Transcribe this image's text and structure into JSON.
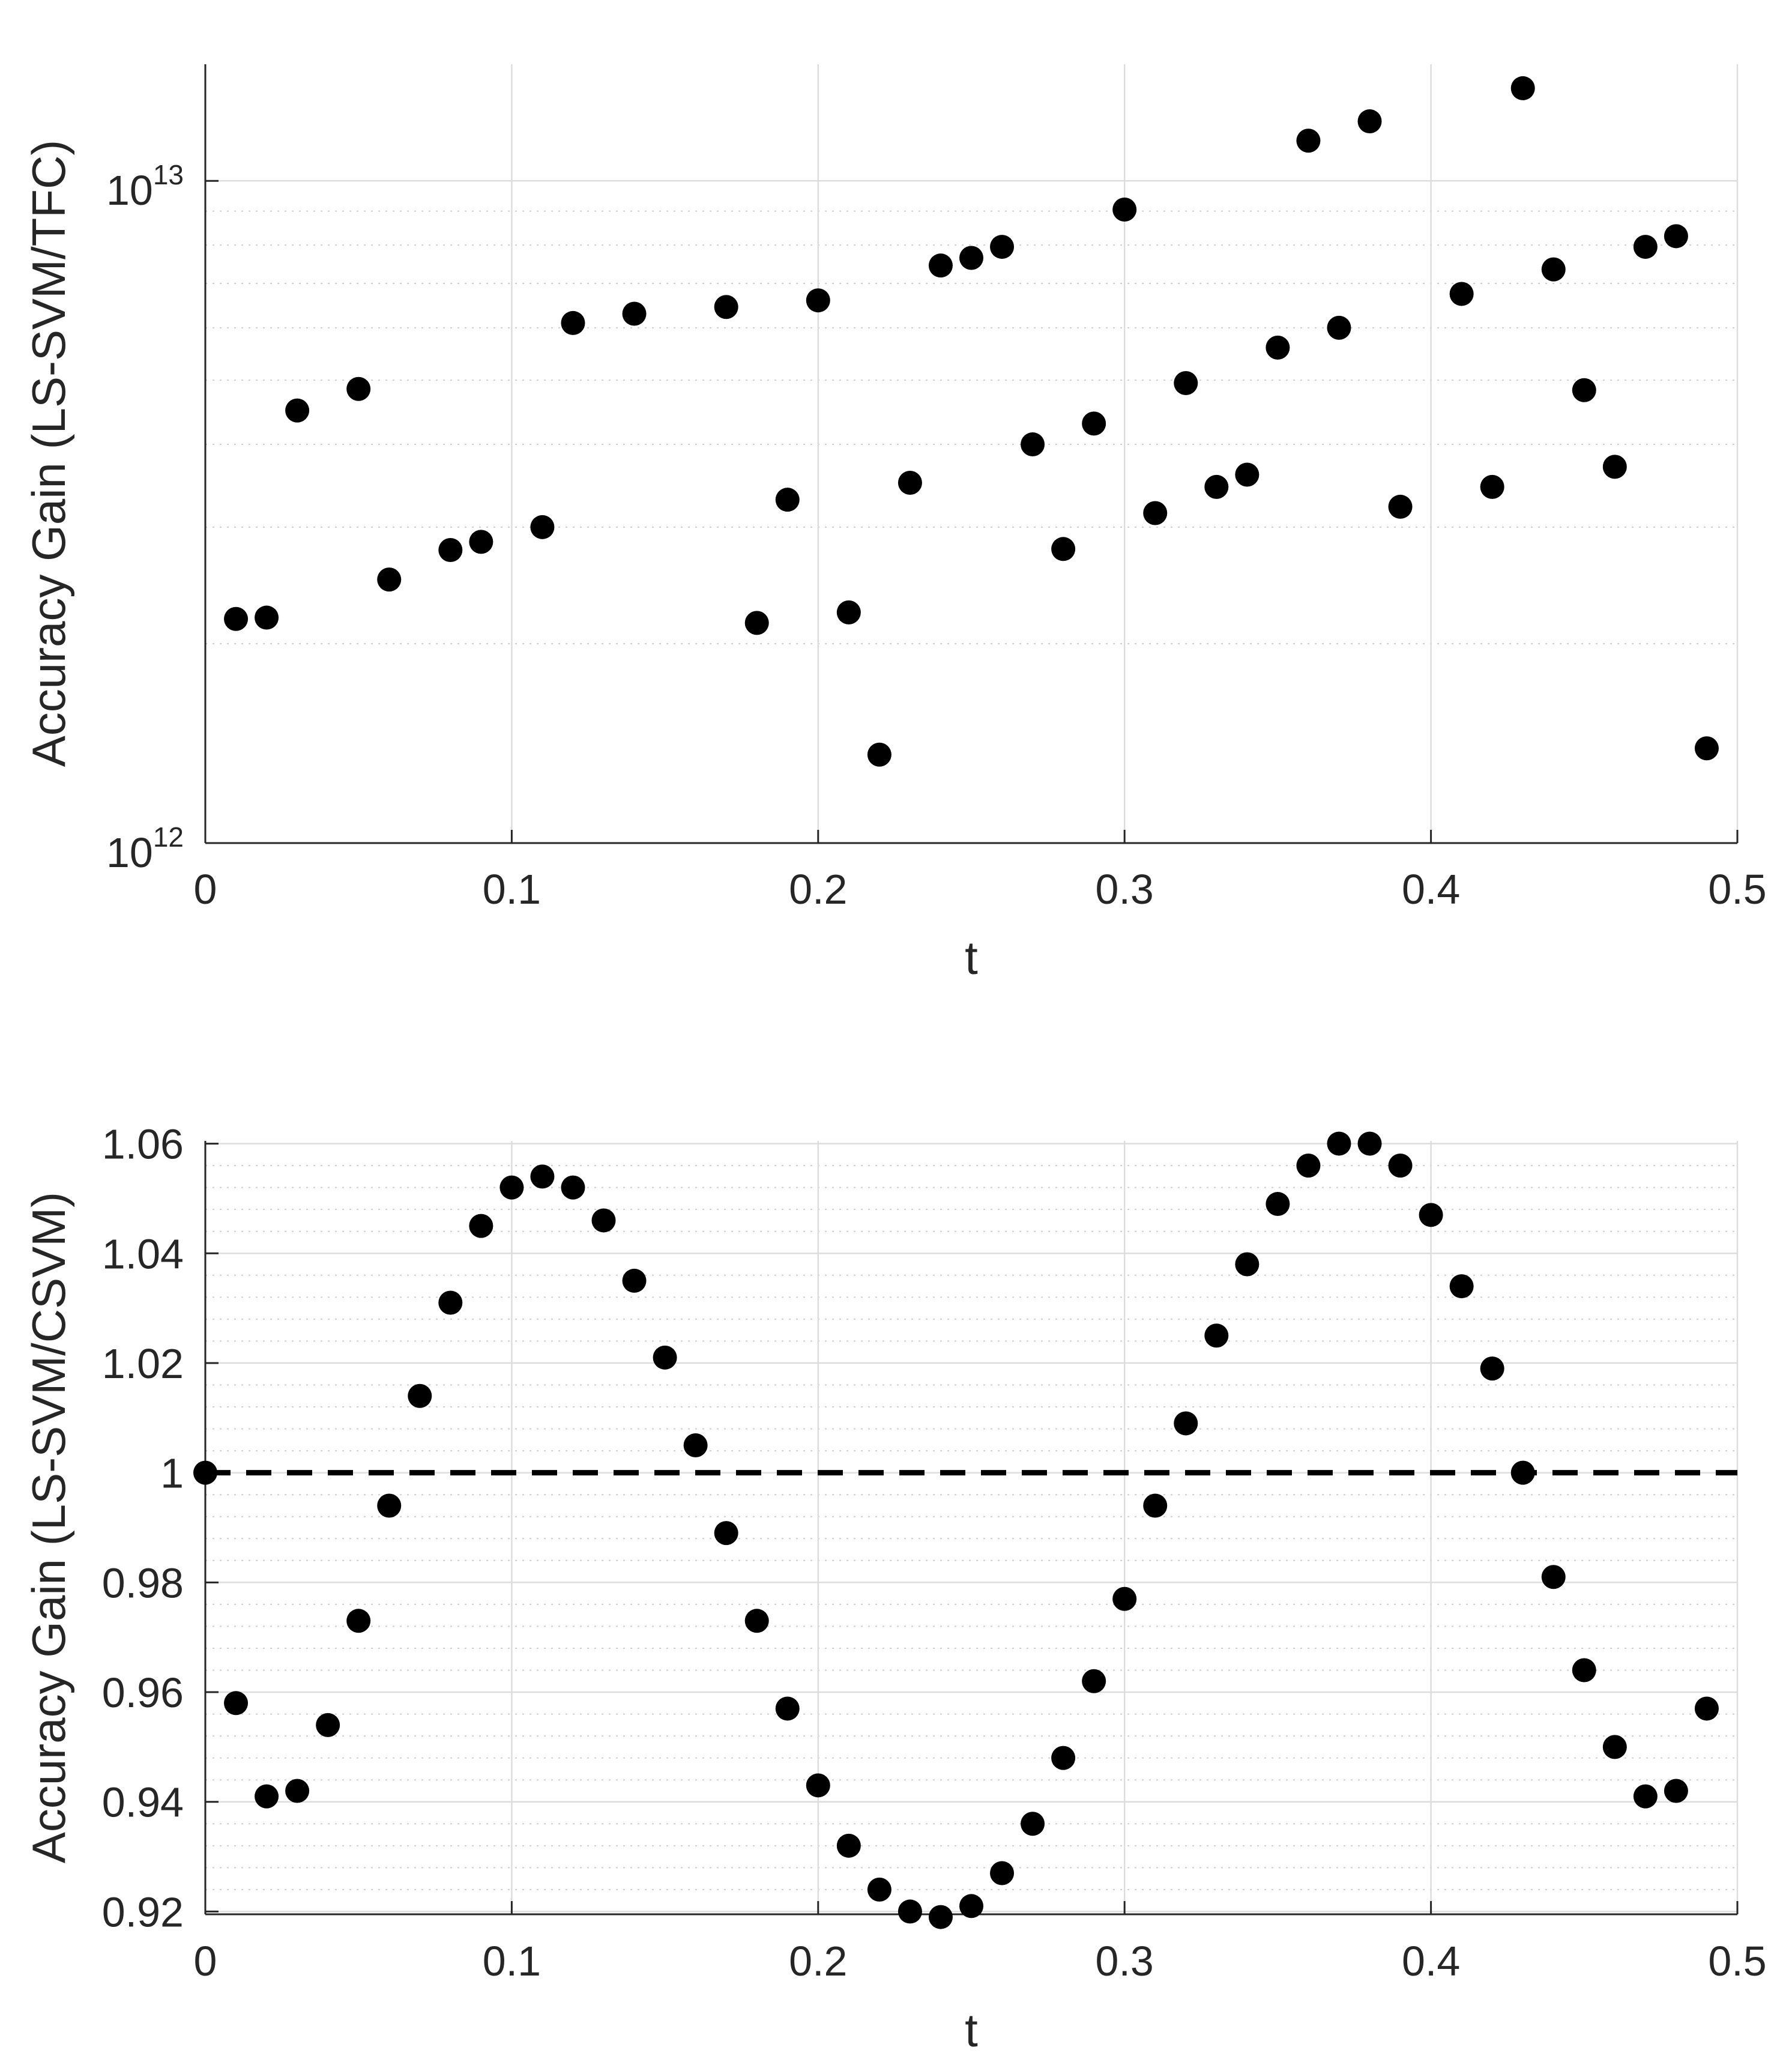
{
  "chart_data": [
    {
      "type": "scatter",
      "xlabel": "t",
      "ylabel": "Accuracy Gain (LS-SVM/TFC)",
      "yscale": "log",
      "xlim": [
        0,
        0.5
      ],
      "ylim": [
        1000000000000.0,
        15000000000000.0
      ],
      "x_ticks": [
        0,
        0.1,
        0.2,
        0.3,
        0.4,
        0.5
      ],
      "x_tick_labels": [
        "0",
        "0.1",
        "0.2",
        "0.3",
        "0.4",
        "0.5"
      ],
      "y_tick_labels": [
        {
          "base": "10",
          "exp": "12"
        },
        {
          "base": "10",
          "exp": "13"
        }
      ],
      "grid": true,
      "series": [
        {
          "name": "accuracy gain",
          "marker": "filled-circle",
          "x": [
            0.01,
            0.02,
            0.03,
            0.05,
            0.06,
            0.08,
            0.09,
            0.11,
            0.12,
            0.14,
            0.17,
            0.18,
            0.19,
            0.2,
            0.21,
            0.22,
            0.23,
            0.24,
            0.25,
            0.26,
            0.27,
            0.28,
            0.29,
            0.3,
            0.31,
            0.32,
            0.33,
            0.34,
            0.35,
            0.36,
            0.37,
            0.38,
            0.39,
            0.41,
            0.42,
            0.43,
            0.44,
            0.45,
            0.46,
            0.47,
            0.48,
            0.49
          ],
          "y": [
            2180000000000.0,
            2190000000000.0,
            4500000000000.0,
            4850000000000.0,
            2500000000000.0,
            2770000000000.0,
            2850000000000.0,
            3000000000000.0,
            6100000000000.0,
            6300000000000.0,
            6450000000000.0,
            2150000000000.0,
            3300000000000.0,
            6600000000000.0,
            2230000000000.0,
            1360000000000.0,
            3500000000000.0,
            7450000000000.0,
            7650000000000.0,
            7950000000000.0,
            4000000000000.0,
            2780000000000.0,
            4300000000000.0,
            9050000000000.0,
            3150000000000.0,
            4950000000000.0,
            3450000000000.0,
            3600000000000.0,
            5600000000000.0,
            11500000000000.0,
            6000000000000.0,
            12300000000000.0,
            3220000000000.0,
            6750000000000.0,
            3450000000000.0,
            13800000000000.0,
            7350000000000.0,
            4830000000000.0,
            3700000000000.0,
            7950000000000.0,
            8250000000000.0,
            1390000000000.0
          ]
        }
      ]
    },
    {
      "type": "scatter",
      "xlabel": "t",
      "ylabel": "Accuracy Gain (LS-SVM/CSVM)",
      "yscale": "linear",
      "xlim": [
        0,
        0.5
      ],
      "ylim": [
        0.9195,
        1.0605
      ],
      "x_ticks": [
        0,
        0.1,
        0.2,
        0.3,
        0.4,
        0.5
      ],
      "x_tick_labels": [
        "0",
        "0.1",
        "0.2",
        "0.3",
        "0.4",
        "0.5"
      ],
      "y_ticks": [
        0.92,
        0.94,
        0.96,
        0.98,
        1.0,
        1.02,
        1.04,
        1.06
      ],
      "y_tick_labels": [
        "0.92",
        "0.94",
        "0.96",
        "0.98",
        "1",
        "1.02",
        "1.04",
        "1.06"
      ],
      "reference_line": {
        "y": 1.0,
        "style": "dashed"
      },
      "grid": true,
      "series": [
        {
          "name": "accuracy gain",
          "marker": "filled-circle",
          "x": [
            0.0,
            0.01,
            0.02,
            0.03,
            0.04,
            0.05,
            0.06,
            0.07,
            0.08,
            0.09,
            0.1,
            0.11,
            0.12,
            0.13,
            0.14,
            0.15,
            0.16,
            0.17,
            0.18,
            0.19,
            0.2,
            0.21,
            0.22,
            0.23,
            0.24,
            0.25,
            0.26,
            0.27,
            0.28,
            0.29,
            0.3,
            0.31,
            0.32,
            0.33,
            0.34,
            0.35,
            0.36,
            0.37,
            0.38,
            0.39,
            0.4,
            0.41,
            0.42,
            0.43,
            0.44,
            0.45,
            0.46,
            0.47,
            0.48,
            0.49
          ],
          "y": [
            1.0,
            0.958,
            0.941,
            0.942,
            0.954,
            0.973,
            0.994,
            1.014,
            1.031,
            1.045,
            1.052,
            1.054,
            1.052,
            1.046,
            1.035,
            1.021,
            1.005,
            0.989,
            0.973,
            0.957,
            0.943,
            0.932,
            0.924,
            0.92,
            0.919,
            0.921,
            0.927,
            0.936,
            0.948,
            0.962,
            0.977,
            0.994,
            1.009,
            1.025,
            1.038,
            1.049,
            1.056,
            1.06,
            1.06,
            1.056,
            1.047,
            1.034,
            1.019,
            1.0,
            0.981,
            0.964,
            0.95,
            0.941,
            0.942,
            0.957
          ]
        }
      ]
    }
  ]
}
